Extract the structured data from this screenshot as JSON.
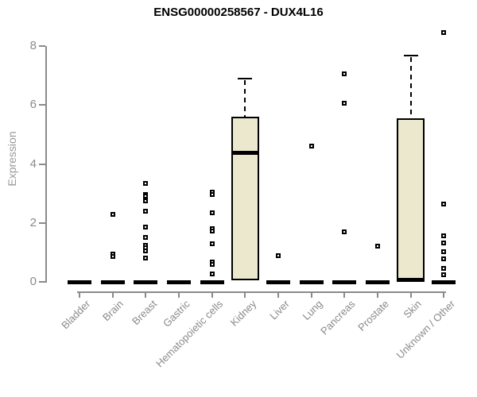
{
  "title": "ENSG00000258567 - DUX4L16",
  "chart_data": {
    "type": "box",
    "title": "ENSG00000258567 - DUX4L16",
    "xlabel": "",
    "ylabel": "Expression",
    "ylim": [
      0,
      8.5
    ],
    "yticks": [
      0,
      2,
      4,
      6,
      8
    ],
    "grid": false,
    "legend": "none",
    "box_fill_color": "#ECE8CD",
    "box_border_color": "#000000",
    "axis_color": "#8A8A8A",
    "tick_label_color": "#8A8A8A",
    "title_color": "#000000",
    "categories": [
      "Bladder",
      "Brain",
      "Breast",
      "Gastric",
      "Hematopoietic cells",
      "Kidney",
      "Liver",
      "Lung",
      "Pancreas",
      "Prostate",
      "Skin",
      "Unknown / Other"
    ],
    "series": [
      {
        "category": "Bladder",
        "q1": 0,
        "median": 0,
        "q3": 0,
        "whisker_low": 0,
        "whisker_high": 0,
        "outliers": []
      },
      {
        "category": "Brain",
        "q1": 0,
        "median": 0,
        "q3": 0,
        "whisker_low": 0,
        "whisker_high": 0,
        "outliers": [
          2.28,
          0.95,
          0.87
        ]
      },
      {
        "category": "Breast",
        "q1": 0,
        "median": 0,
        "q3": 0,
        "whisker_low": 0,
        "whisker_high": 0,
        "outliers": [
          3.35,
          2.95,
          2.9,
          2.75,
          2.4,
          1.85,
          1.5,
          1.25,
          1.15,
          1.05,
          0.8
        ]
      },
      {
        "category": "Gastric",
        "q1": 0,
        "median": 0,
        "q3": 0,
        "whisker_low": 0,
        "whisker_high": 0,
        "outliers": []
      },
      {
        "category": "Hematopoietic cells",
        "q1": 0,
        "median": 0,
        "q3": 0,
        "whisker_low": 0,
        "whisker_high": 0,
        "outliers": [
          3.05,
          2.95,
          2.35,
          1.8,
          1.72,
          1.3,
          0.68,
          0.58,
          0.27
        ]
      },
      {
        "category": "Kidney",
        "q1": 0.05,
        "median": 4.42,
        "q3": 5.6,
        "whisker_low": 0.05,
        "whisker_high": 6.9,
        "outliers": []
      },
      {
        "category": "Liver",
        "q1": 0,
        "median": 0,
        "q3": 0,
        "whisker_low": 0,
        "whisker_high": 0,
        "outliers": [
          0.9
        ]
      },
      {
        "category": "Lung",
        "q1": 0,
        "median": 0,
        "q3": 0,
        "whisker_low": 0,
        "whisker_high": 0,
        "outliers": [
          4.6
        ]
      },
      {
        "category": "Pancreas",
        "q1": 0,
        "median": 0,
        "q3": 0,
        "whisker_low": 0,
        "whisker_high": 0,
        "outliers": [
          7.05,
          6.05,
          1.7
        ]
      },
      {
        "category": "Prostate",
        "q1": 0,
        "median": 0,
        "q3": 0,
        "whisker_low": 0,
        "whisker_high": 0,
        "outliers": [
          1.2
        ]
      },
      {
        "category": "Skin",
        "q1": 0,
        "median": 0.02,
        "q3": 5.55,
        "whisker_low": 0,
        "whisker_high": 7.68,
        "outliers": []
      },
      {
        "category": "Unknown / Other",
        "q1": 0,
        "median": 0,
        "q3": 0,
        "whisker_low": 0,
        "whisker_high": 0,
        "outliers": [
          8.45,
          2.65,
          1.57,
          1.32,
          1.03,
          0.78,
          0.45,
          0.25
        ]
      }
    ]
  }
}
